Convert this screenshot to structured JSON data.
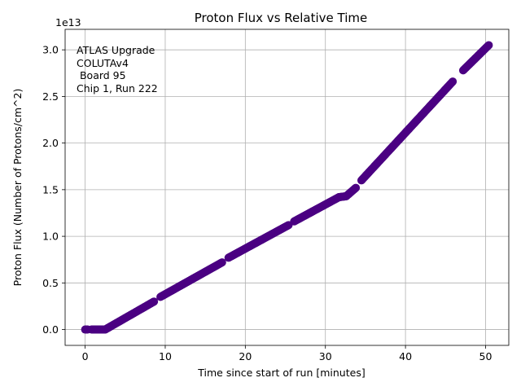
{
  "chart_data": {
    "type": "scatter",
    "title": "Proton Flux vs Relative Time",
    "xlabel": "Time since start of run [minutes]",
    "ylabel": "Proton Flux (Number of Protons/cm^2)",
    "y_offset_label": "1e13",
    "y_scale": 10000000000000.0,
    "xlim": [
      -2.5,
      52.9
    ],
    "ylim": [
      -1700000000000.0,
      32200000000000.0
    ],
    "x_ticks": [
      0,
      10,
      20,
      30,
      40,
      50
    ],
    "x_tick_labels": [
      "0",
      "10",
      "20",
      "30",
      "40",
      "50"
    ],
    "y_ticks": [
      0,
      5000000000000.0,
      10000000000000.0,
      15000000000000.0,
      20000000000000.0,
      25000000000000.0,
      30000000000000.0
    ],
    "y_tick_labels": [
      "0.0",
      "0.5",
      "1.0",
      "1.5",
      "2.0",
      "2.5",
      "3.0"
    ],
    "grid": true,
    "annotation": [
      "ATLAS Upgrade",
      "COLUTAv4",
      " Board 95",
      "Chip 1, Run 222"
    ],
    "marker_color": "#4b0082",
    "series": [
      {
        "segments": [
          {
            "x": [
              0.0,
              0.3
            ],
            "y": [
              0.0,
              0.0
            ]
          },
          {
            "x": [
              0.8,
              2.5
            ],
            "y": [
              0.0,
              0.0
            ]
          },
          {
            "x": [
              2.5,
              8.6
            ],
            "y": [
              0.0,
              3000000000000.0
            ]
          },
          {
            "x": [
              9.4,
              17.1
            ],
            "y": [
              3500000000000.0,
              7200000000000.0
            ]
          },
          {
            "x": [
              17.9,
              25.4
            ],
            "y": [
              7700000000000.0,
              11200000000000.0
            ]
          },
          {
            "x": [
              26.1,
              31.7
            ],
            "y": [
              11600000000000.0,
              14200000000000.0
            ]
          },
          {
            "x": [
              31.7,
              32.6
            ],
            "y": [
              14200000000000.0,
              14300000000000.0
            ]
          },
          {
            "x": [
              32.6,
              33.8
            ],
            "y": [
              14300000000000.0,
              15200000000000.0
            ]
          },
          {
            "x": [
              34.5,
              45.9
            ],
            "y": [
              16000000000000.0,
              26600000000000.0
            ]
          },
          {
            "x": [
              47.2,
              50.4
            ],
            "y": [
              27800000000000.0,
              30500000000000.0
            ]
          }
        ]
      }
    ]
  }
}
